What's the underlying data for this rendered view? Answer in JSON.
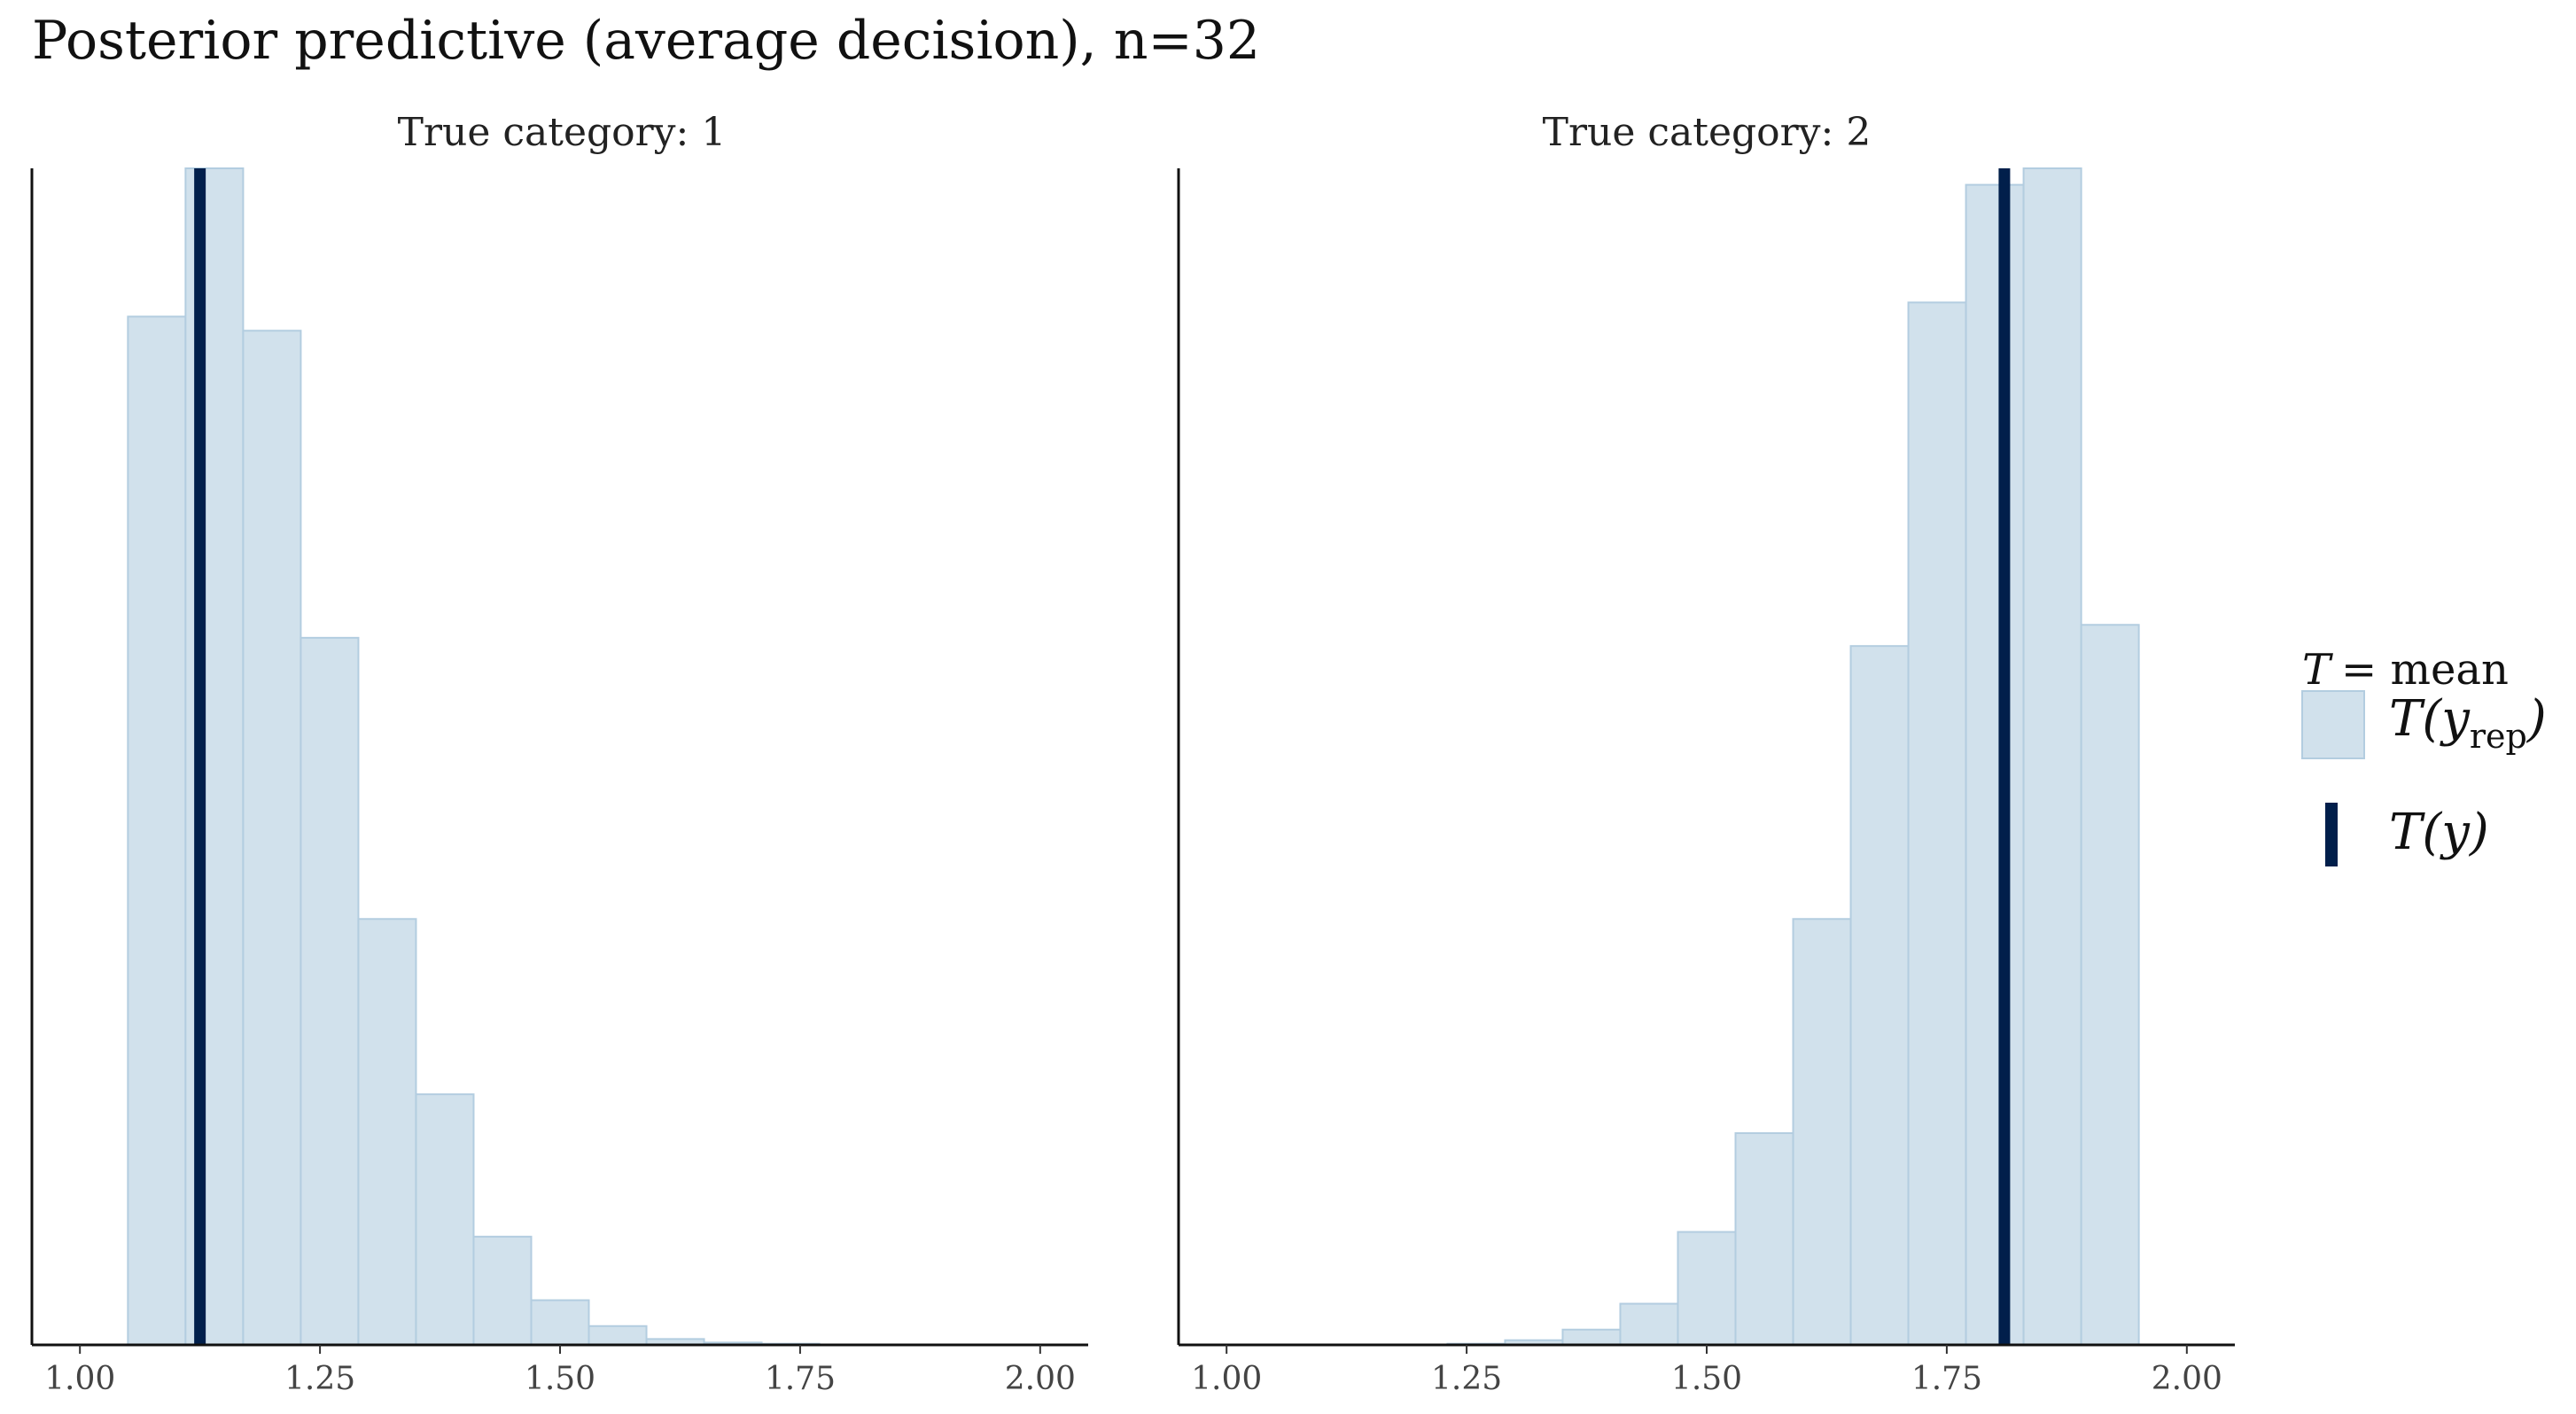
{
  "chart_data": {
    "type": "histogram",
    "title": "Posterior predictive (average decision), n=32",
    "statistic_label": "T = mean",
    "legend": {
      "title_symbol": "T",
      "title_eq": "= mean",
      "rep_label_main": "T(y",
      "rep_label_sub": "rep",
      "rep_label_end": ")",
      "obs_label": "T(y)"
    },
    "colors": {
      "fill": "#d1e1ec",
      "stroke": "#b3cde0",
      "observed": "#011f4b"
    },
    "xlim": [
      0.95,
      2.05
    ],
    "x_ticks": [
      "1.00",
      "1.25",
      "1.50",
      "1.75",
      "2.00"
    ],
    "x_tick_values": [
      1.0,
      1.25,
      1.5,
      1.75,
      2.0
    ],
    "bin_width": 0.06,
    "panels": [
      {
        "strip": "True category: 1",
        "observed": 1.125,
        "bin_starts": [
          1.05,
          1.11,
          1.17,
          1.23,
          1.29,
          1.35,
          1.41,
          1.47,
          1.53,
          1.59,
          1.65,
          1.71
        ],
        "counts": [
          0.874,
          1.0,
          0.862,
          0.601,
          0.362,
          0.213,
          0.092,
          0.038,
          0.016,
          0.005,
          0.002,
          0.001
        ]
      },
      {
        "strip": "True category: 2",
        "observed": 1.81,
        "bin_starts": [
          1.23,
          1.29,
          1.35,
          1.41,
          1.47,
          1.53,
          1.59,
          1.65,
          1.71,
          1.77,
          1.83,
          1.89
        ],
        "counts": [
          0.001,
          0.004,
          0.013,
          0.035,
          0.096,
          0.18,
          0.362,
          0.594,
          0.886,
          0.986,
          1.0,
          0.612
        ]
      }
    ]
  }
}
